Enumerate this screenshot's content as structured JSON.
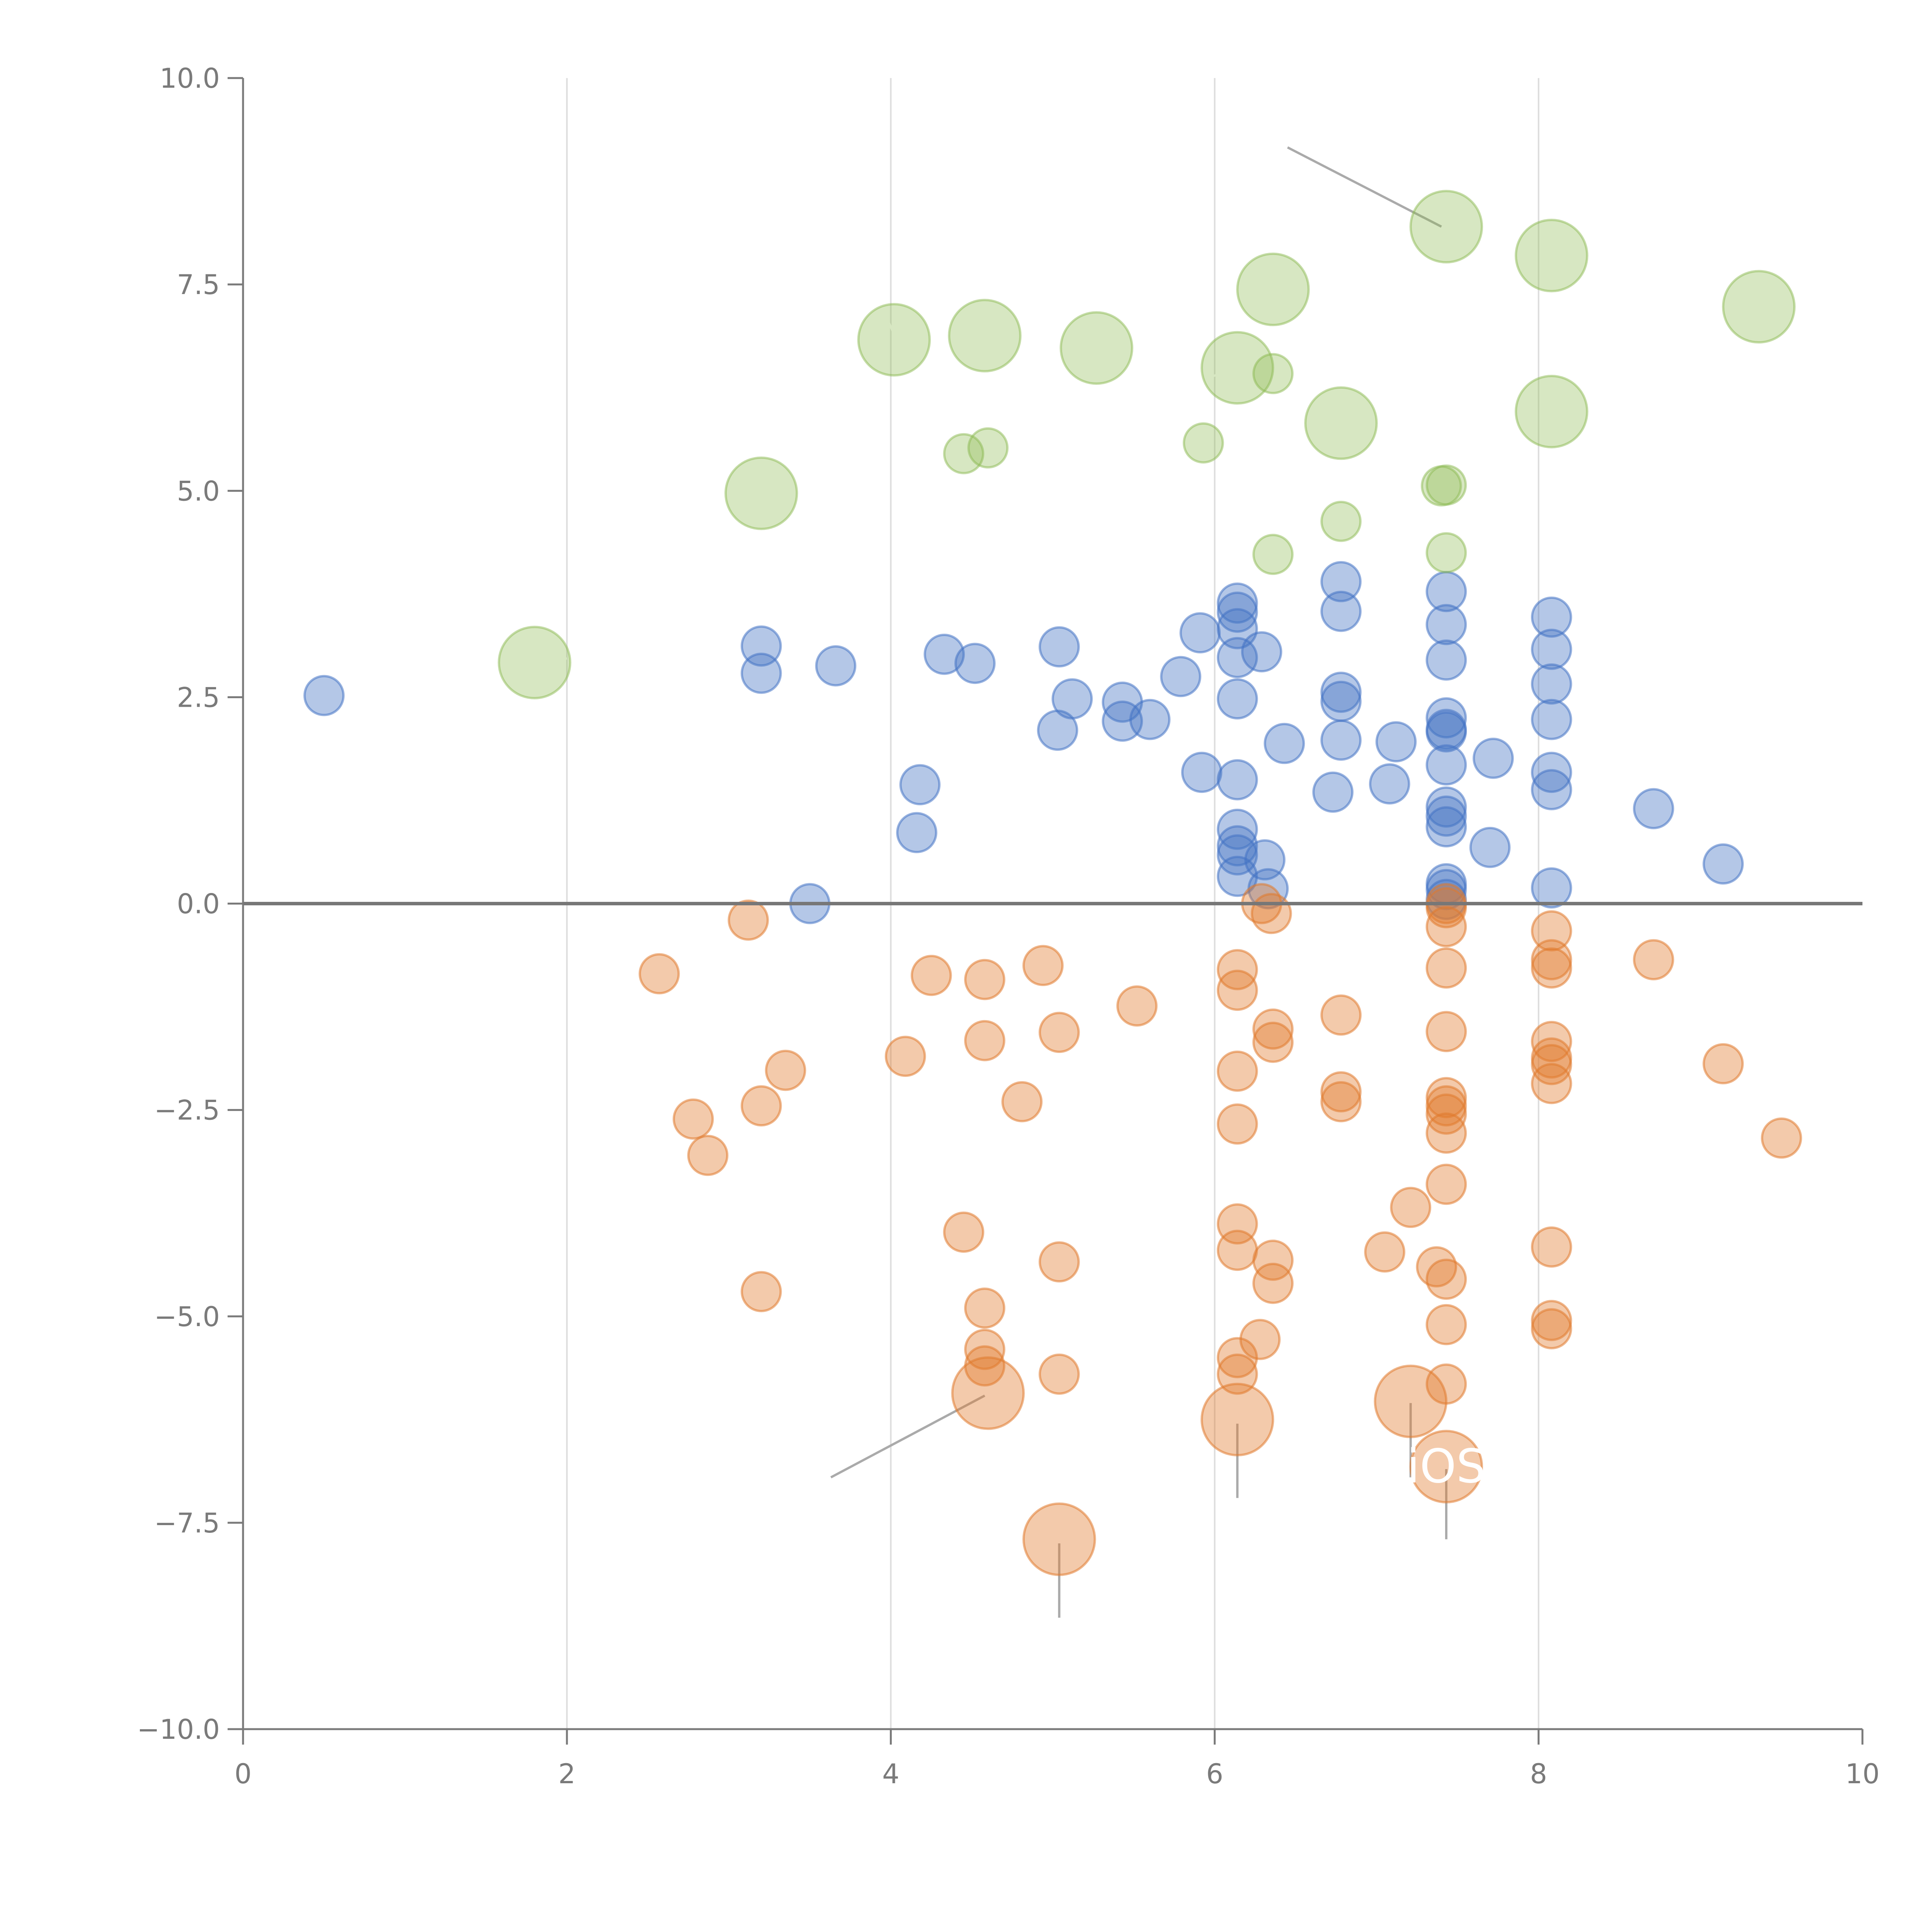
{
  "chart_data": {
    "type": "scatter",
    "title": "",
    "xlabel": "",
    "ylabel": "",
    "xlim": [
      0,
      10
    ],
    "ylim": [
      -10,
      10
    ],
    "x_ticks": [
      {
        "value": 0,
        "label": "0"
      },
      {
        "value": 2,
        "label": "2"
      },
      {
        "value": 4,
        "label": "4"
      },
      {
        "value": 6,
        "label": "6"
      },
      {
        "value": 8,
        "label": "8"
      },
      {
        "value": 10,
        "label": "10"
      }
    ],
    "y_ticks": [
      {
        "value": 10,
        "label": "10.0"
      },
      {
        "value": 7.5,
        "label": "7.5"
      },
      {
        "value": 5,
        "label": "5.0"
      },
      {
        "value": 2.5,
        "label": "2.5"
      },
      {
        "value": 0,
        "label": "0.0"
      },
      {
        "value": -2.5,
        "label": "−2.5"
      },
      {
        "value": -5,
        "label": "−5.0"
      },
      {
        "value": -7.5,
        "label": "−7.5"
      },
      {
        "value": -10,
        "label": "−10.0"
      }
    ],
    "vertical_gridlines_at": [
      2,
      4,
      6,
      8
    ],
    "zero_line": true,
    "legend": "none",
    "callout": {
      "text": "iOS",
      "x": 7.43,
      "y": -6.8
    },
    "series": [
      {
        "name": "blue",
        "color": "#4472c4",
        "opacity": 0.4,
        "r": 0.12,
        "points": [
          [
            0.5,
            2.52
          ],
          [
            3.2,
            3.12
          ],
          [
            3.2,
            2.79
          ],
          [
            3.66,
            2.88
          ],
          [
            3.5,
            0.0
          ],
          [
            4.18,
            1.44
          ],
          [
            4.16,
            0.86
          ],
          [
            4.33,
            3.02
          ],
          [
            4.52,
            2.91
          ],
          [
            5.04,
            3.11
          ],
          [
            5.03,
            2.1
          ],
          [
            5.12,
            2.48
          ],
          [
            5.43,
            2.44
          ],
          [
            5.43,
            2.21
          ],
          [
            5.6,
            2.23
          ],
          [
            5.79,
            2.75
          ],
          [
            5.91,
            3.28
          ],
          [
            5.92,
            1.59
          ],
          [
            6.14,
            3.64
          ],
          [
            6.14,
            3.53
          ],
          [
            6.14,
            3.33
          ],
          [
            6.14,
            2.98
          ],
          [
            6.14,
            2.48
          ],
          [
            6.14,
            1.5
          ],
          [
            6.14,
            0.9
          ],
          [
            6.14,
            0.7
          ],
          [
            6.14,
            0.59
          ],
          [
            6.14,
            0.33
          ],
          [
            6.29,
            3.05
          ],
          [
            6.31,
            0.53
          ],
          [
            6.33,
            0.18
          ],
          [
            6.43,
            1.94
          ],
          [
            6.73,
            1.35
          ],
          [
            6.78,
            3.9
          ],
          [
            6.78,
            3.54
          ],
          [
            6.78,
            2.56
          ],
          [
            6.78,
            2.45
          ],
          [
            6.78,
            1.98
          ],
          [
            7.08,
            1.45
          ],
          [
            7.12,
            1.96
          ],
          [
            7.43,
            3.78
          ],
          [
            7.43,
            3.38
          ],
          [
            7.43,
            2.95
          ],
          [
            7.43,
            2.25
          ],
          [
            7.43,
            2.11
          ],
          [
            7.43,
            2.08
          ],
          [
            7.43,
            1.68
          ],
          [
            7.43,
            1.17
          ],
          [
            7.43,
            1.06
          ],
          [
            7.43,
            0.93
          ],
          [
            7.43,
            0.24
          ],
          [
            7.43,
            0.17
          ],
          [
            7.43,
            0.05
          ],
          [
            7.7,
            0.68
          ],
          [
            7.72,
            1.76
          ],
          [
            8.08,
            3.47
          ],
          [
            8.08,
            3.08
          ],
          [
            8.08,
            2.66
          ],
          [
            8.08,
            2.23
          ],
          [
            8.08,
            1.59
          ],
          [
            8.08,
            1.38
          ],
          [
            8.08,
            0.19
          ],
          [
            8.71,
            1.15
          ],
          [
            9.14,
            0.48
          ]
        ]
      },
      {
        "name": "orange",
        "color": "#e07a2e",
        "opacity": 0.4,
        "r": 0.12,
        "points": [
          [
            2.57,
            -0.85
          ],
          [
            2.78,
            -2.61
          ],
          [
            2.87,
            -3.05
          ],
          [
            3.12,
            -0.2
          ],
          [
            3.2,
            -2.45
          ],
          [
            3.2,
            -4.7
          ],
          [
            3.35,
            -2.02
          ],
          [
            4.09,
            -1.85
          ],
          [
            4.25,
            -0.87
          ],
          [
            4.45,
            -3.98
          ],
          [
            4.58,
            -0.92
          ],
          [
            4.58,
            -1.66
          ],
          [
            4.58,
            -4.9
          ],
          [
            4.58,
            -5.4
          ],
          [
            4.58,
            -5.6
          ],
          [
            4.81,
            -2.4
          ],
          [
            4.94,
            -0.75
          ],
          [
            5.04,
            -1.56
          ],
          [
            5.04,
            -4.34
          ],
          [
            5.04,
            -5.7
          ],
          [
            5.52,
            -1.24
          ],
          [
            6.14,
            -0.8
          ],
          [
            6.14,
            -1.05
          ],
          [
            6.14,
            -2.03
          ],
          [
            6.14,
            -2.67
          ],
          [
            6.14,
            -3.88
          ],
          [
            6.14,
            -4.2
          ],
          [
            6.14,
            -5.5
          ],
          [
            6.14,
            -5.7
          ],
          [
            6.28,
            -5.28
          ],
          [
            6.29,
            0.0
          ],
          [
            6.35,
            -0.12
          ],
          [
            6.36,
            -1.52
          ],
          [
            6.36,
            -1.68
          ],
          [
            6.36,
            -4.32
          ],
          [
            6.36,
            -4.6
          ],
          [
            6.78,
            -1.35
          ],
          [
            6.78,
            -2.28
          ],
          [
            6.78,
            -2.4
          ],
          [
            7.05,
            -4.22
          ],
          [
            7.21,
            -3.68
          ],
          [
            7.37,
            -4.4
          ],
          [
            7.43,
            0.0
          ],
          [
            7.43,
            -0.05
          ],
          [
            7.43,
            -0.28
          ],
          [
            7.43,
            -0.78
          ],
          [
            7.43,
            -1.55
          ],
          [
            7.43,
            -2.35
          ],
          [
            7.43,
            -2.45
          ],
          [
            7.43,
            -2.55
          ],
          [
            7.43,
            -2.78
          ],
          [
            7.43,
            -3.4
          ],
          [
            7.43,
            -4.55
          ],
          [
            7.43,
            -5.1
          ],
          [
            7.43,
            -5.82
          ],
          [
            8.08,
            -0.33
          ],
          [
            8.08,
            -0.68
          ],
          [
            8.08,
            -0.78
          ],
          [
            8.08,
            -1.67
          ],
          [
            8.08,
            -1.87
          ],
          [
            8.08,
            -1.95
          ],
          [
            8.08,
            -2.18
          ],
          [
            8.08,
            -4.16
          ],
          [
            8.08,
            -5.05
          ],
          [
            8.08,
            -5.15
          ],
          [
            8.71,
            -0.68
          ],
          [
            9.14,
            -1.94
          ],
          [
            9.5,
            -2.84
          ]
        ]
      },
      {
        "name": "orange-large",
        "color": "#e07a2e",
        "opacity": 0.4,
        "r": 0.22,
        "points": [
          [
            4.6,
            -5.93
          ],
          [
            5.04,
            -7.7
          ],
          [
            6.14,
            -6.25
          ],
          [
            7.21,
            -6.03
          ],
          [
            7.43,
            -6.82
          ]
        ]
      },
      {
        "name": "green",
        "color": "#8cba51",
        "opacity": 0.35,
        "r": 0.12,
        "points": [
          [
            4.45,
            5.45
          ],
          [
            4.6,
            5.52
          ],
          [
            5.93,
            5.58
          ],
          [
            6.36,
            6.42
          ],
          [
            6.36,
            4.23
          ],
          [
            6.78,
            4.63
          ],
          [
            7.4,
            5.06
          ],
          [
            7.43,
            5.07
          ],
          [
            7.43,
            4.25
          ]
        ]
      },
      {
        "name": "green-large",
        "color": "#8cba51",
        "opacity": 0.35,
        "r": 0.22,
        "points": [
          [
            1.8,
            2.92
          ],
          [
            3.2,
            4.97
          ],
          [
            4.02,
            6.83
          ],
          [
            4.58,
            6.88
          ],
          [
            5.27,
            6.73
          ],
          [
            6.14,
            6.49
          ],
          [
            6.36,
            7.44
          ],
          [
            6.78,
            5.82
          ],
          [
            7.43,
            8.2
          ],
          [
            8.08,
            7.85
          ],
          [
            8.08,
            5.96
          ],
          [
            9.36,
            7.23
          ]
        ]
      }
    ],
    "leader_lines": [
      {
        "x1": 6.45,
        "y1": 9.16,
        "x2": 7.4,
        "y2": 8.2,
        "color": "#aaaaaa"
      },
      {
        "x1": 3.63,
        "y1": -6.95,
        "x2": 4.58,
        "y2": -5.96,
        "color": "#aaaaaa"
      },
      {
        "x1": 6.14,
        "y1": -6.3,
        "x2": 6.14,
        "y2": -7.2,
        "color": "#aaaaaa"
      },
      {
        "x1": 7.21,
        "y1": -6.05,
        "x2": 7.21,
        "y2": -6.95,
        "color": "#aaaaaa"
      },
      {
        "x1": 7.43,
        "y1": -6.85,
        "x2": 7.43,
        "y2": -7.7,
        "color": "#aaaaaa"
      },
      {
        "x1": 5.04,
        "y1": -7.75,
        "x2": 5.04,
        "y2": -8.65,
        "color": "#aaaaaa"
      },
      {
        "x1": 3.25,
        "y1": 5.0,
        "x2": 3.4,
        "y2": 5.3,
        "color": "#ffffff"
      },
      {
        "x1": 1.82,
        "y1": 2.92,
        "x2": 2.0,
        "y2": 2.97,
        "color": "#ffffff"
      },
      {
        "x1": 4.02,
        "y1": 6.9,
        "x2": 3.95,
        "y2": 7.2,
        "color": "#ffffff"
      },
      {
        "x1": 4.6,
        "y1": 6.93,
        "x2": 4.78,
        "y2": 7.15,
        "color": "#ffffff"
      },
      {
        "x1": 5.27,
        "y1": 6.65,
        "x2": 5.24,
        "y2": 6.95,
        "color": "#ffffff"
      },
      {
        "x1": 6.14,
        "y1": 6.47,
        "x2": 5.97,
        "y2": 6.38,
        "color": "#ffffff"
      },
      {
        "x1": 6.38,
        "y1": 7.5,
        "x2": 6.5,
        "y2": 7.8,
        "color": "#ffffff"
      },
      {
        "x1": 6.78,
        "y1": 5.8,
        "x2": 6.97,
        "y2": 5.7,
        "color": "#ffffff"
      },
      {
        "x1": 8.08,
        "y1": 5.9,
        "x2": 8.14,
        "y2": 5.55,
        "color": "#ffffff"
      }
    ]
  },
  "colors": {
    "axis": "#7a7a7a",
    "zero_line": "#777777",
    "grid": "#dddddd",
    "background": "#ffffff"
  }
}
